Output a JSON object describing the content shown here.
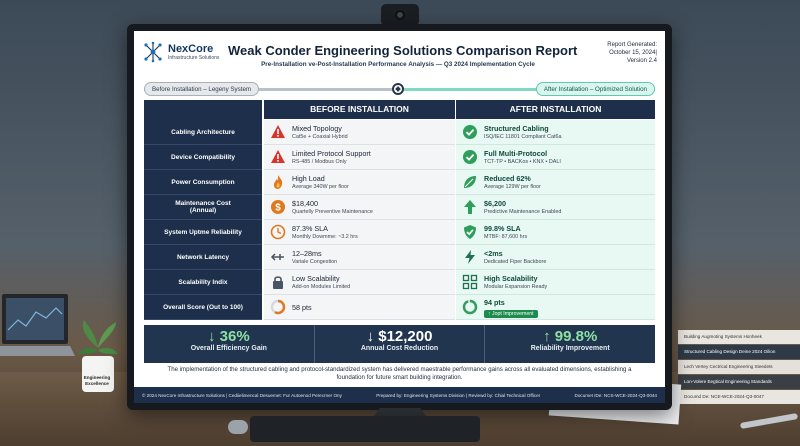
{
  "header": {
    "brand_name": "NexCore",
    "brand_tagline": "Infrastructure Solutions",
    "title": "Weak Conder Engineering Solutions Comparison Report",
    "subtitle": "Pre-Installation ve-Post-Installation Performance Analysis — Q3 2024 Implementation Cycle",
    "meta_line1": "Report Generated:",
    "meta_line2": "October 15, 2024|",
    "meta_line3": "Version 2.4"
  },
  "phase": {
    "before": "Before Installation – Legeny System",
    "after": "After Installation – Optimized Solution"
  },
  "table": {
    "before_header": "BEFORE INSTALLATION",
    "after_header": "AFTER INSTALLATION",
    "rows": [
      {
        "label": "Cabling Architecture",
        "before": {
          "main": "Mixed Topology",
          "sub": "Cat5e + Coaxial Hybrid",
          "icon": "warning-icon"
        },
        "after": {
          "main": "Structured Cabling",
          "sub": "ISQ/IEC 11801 Compliant Cat6a",
          "icon": "check-circle-icon"
        }
      },
      {
        "label": "Device Compatibility",
        "before": {
          "main": "Limited Protocol Support",
          "sub": "RS-485 / Modbus Only",
          "icon": "warning-icon"
        },
        "after": {
          "main": "Full Multi-Protocol",
          "sub": "TCT-TP • BACKos • KNX • DALI",
          "icon": "check-circle-icon"
        }
      },
      {
        "label": "Power Consumption",
        "before": {
          "main": "High Load",
          "sub": "Average 340W per floor",
          "icon": "flame-icon"
        },
        "after": {
          "main": "Reduced 62%",
          "sub": "Average 129W per floor",
          "icon": "leaf-icon"
        }
      },
      {
        "label": "Maintenance Cost\n(Annual)",
        "before": {
          "main": "$18,400",
          "sub": "Quartelly Preventive Maintenance",
          "icon": "dollar-icon"
        },
        "after": {
          "main": "$6,200",
          "sub": "Predictive Maintenance Enabled",
          "icon": "arrow-up-icon"
        }
      },
      {
        "label": "System Uptme Reliability",
        "before": {
          "main": "87.3% SLA",
          "sub": "Monthly Dowmme: ~3.2 hrs",
          "icon": "clock-icon"
        },
        "after": {
          "main": "99.8% SLA",
          "sub": "MTBF: 87,600 hrs",
          "icon": "shield-check-icon"
        }
      },
      {
        "label": "Network Latency",
        "before": {
          "main": "12–28ms",
          "sub": "Variale Congestion",
          "icon": "arrows-icon"
        },
        "after": {
          "main": "<2ms",
          "sub": "Dedicated Fiper Backbore",
          "icon": "lightning-icon"
        }
      },
      {
        "label": "Scalability Indix",
        "before": {
          "main": "Low Scalability",
          "sub": "Add-on Modules Limited",
          "icon": "lock-icon"
        },
        "after": {
          "main": "High Scalability",
          "sub": "Modular Expansion Ready",
          "icon": "grid-icon"
        }
      },
      {
        "label": "Overall Score (Out to 100)",
        "before": {
          "main": "58 pts",
          "sub": "",
          "icon": "score-ring-icon"
        },
        "after": {
          "main": "94 pts",
          "sub": "",
          "badge": "↑ Jopt Improvement",
          "icon": "score-ring-icon"
        }
      }
    ]
  },
  "summary": [
    {
      "value": "↓ 36%",
      "label": "Overall Efficiency Gain"
    },
    {
      "value": "↓ $12,200",
      "label": "Annual Cost Reduction"
    },
    {
      "value": "↑ 99.8%",
      "label": "Reliability Improvement"
    }
  ],
  "conclusion": "The implementation of the structured cabling and protocol-standardized system has delivered maestrable performance gains across all evaluated dimensions, establishing a foundation for future smart building integration.",
  "footer": {
    "left": "© 2024 NexCore Infrastructure Solutions | Cediielimencal Desuemet: Fur Autoenod Perecrner Ony",
    "middle": "Prepared by: Engineering Systems Division | Reviewd by: Chial Technical Officer",
    "right": "Documet IDe: NCS-WCE-2024-Q3-0044"
  },
  "desk": {
    "mug_text": "Engineering Excellence",
    "books": [
      "Building Augmoting Systems Honheek",
      "Structured Cabling Design Deine 2024 Oilion",
      "Lech Vertey Cectrical Engineering Steedets",
      "Lon-Volere Eegtical Engineering Standards",
      "Documd De: NCE-WCE-2024-Q3-0047"
    ]
  },
  "colors": {
    "navy": "#1d2f4a",
    "before_bg": "#f4f5f7",
    "after_bg": "#e8f8f2",
    "warning": "#d9342b",
    "success": "#2e9e5a",
    "orange": "#e0781e"
  }
}
